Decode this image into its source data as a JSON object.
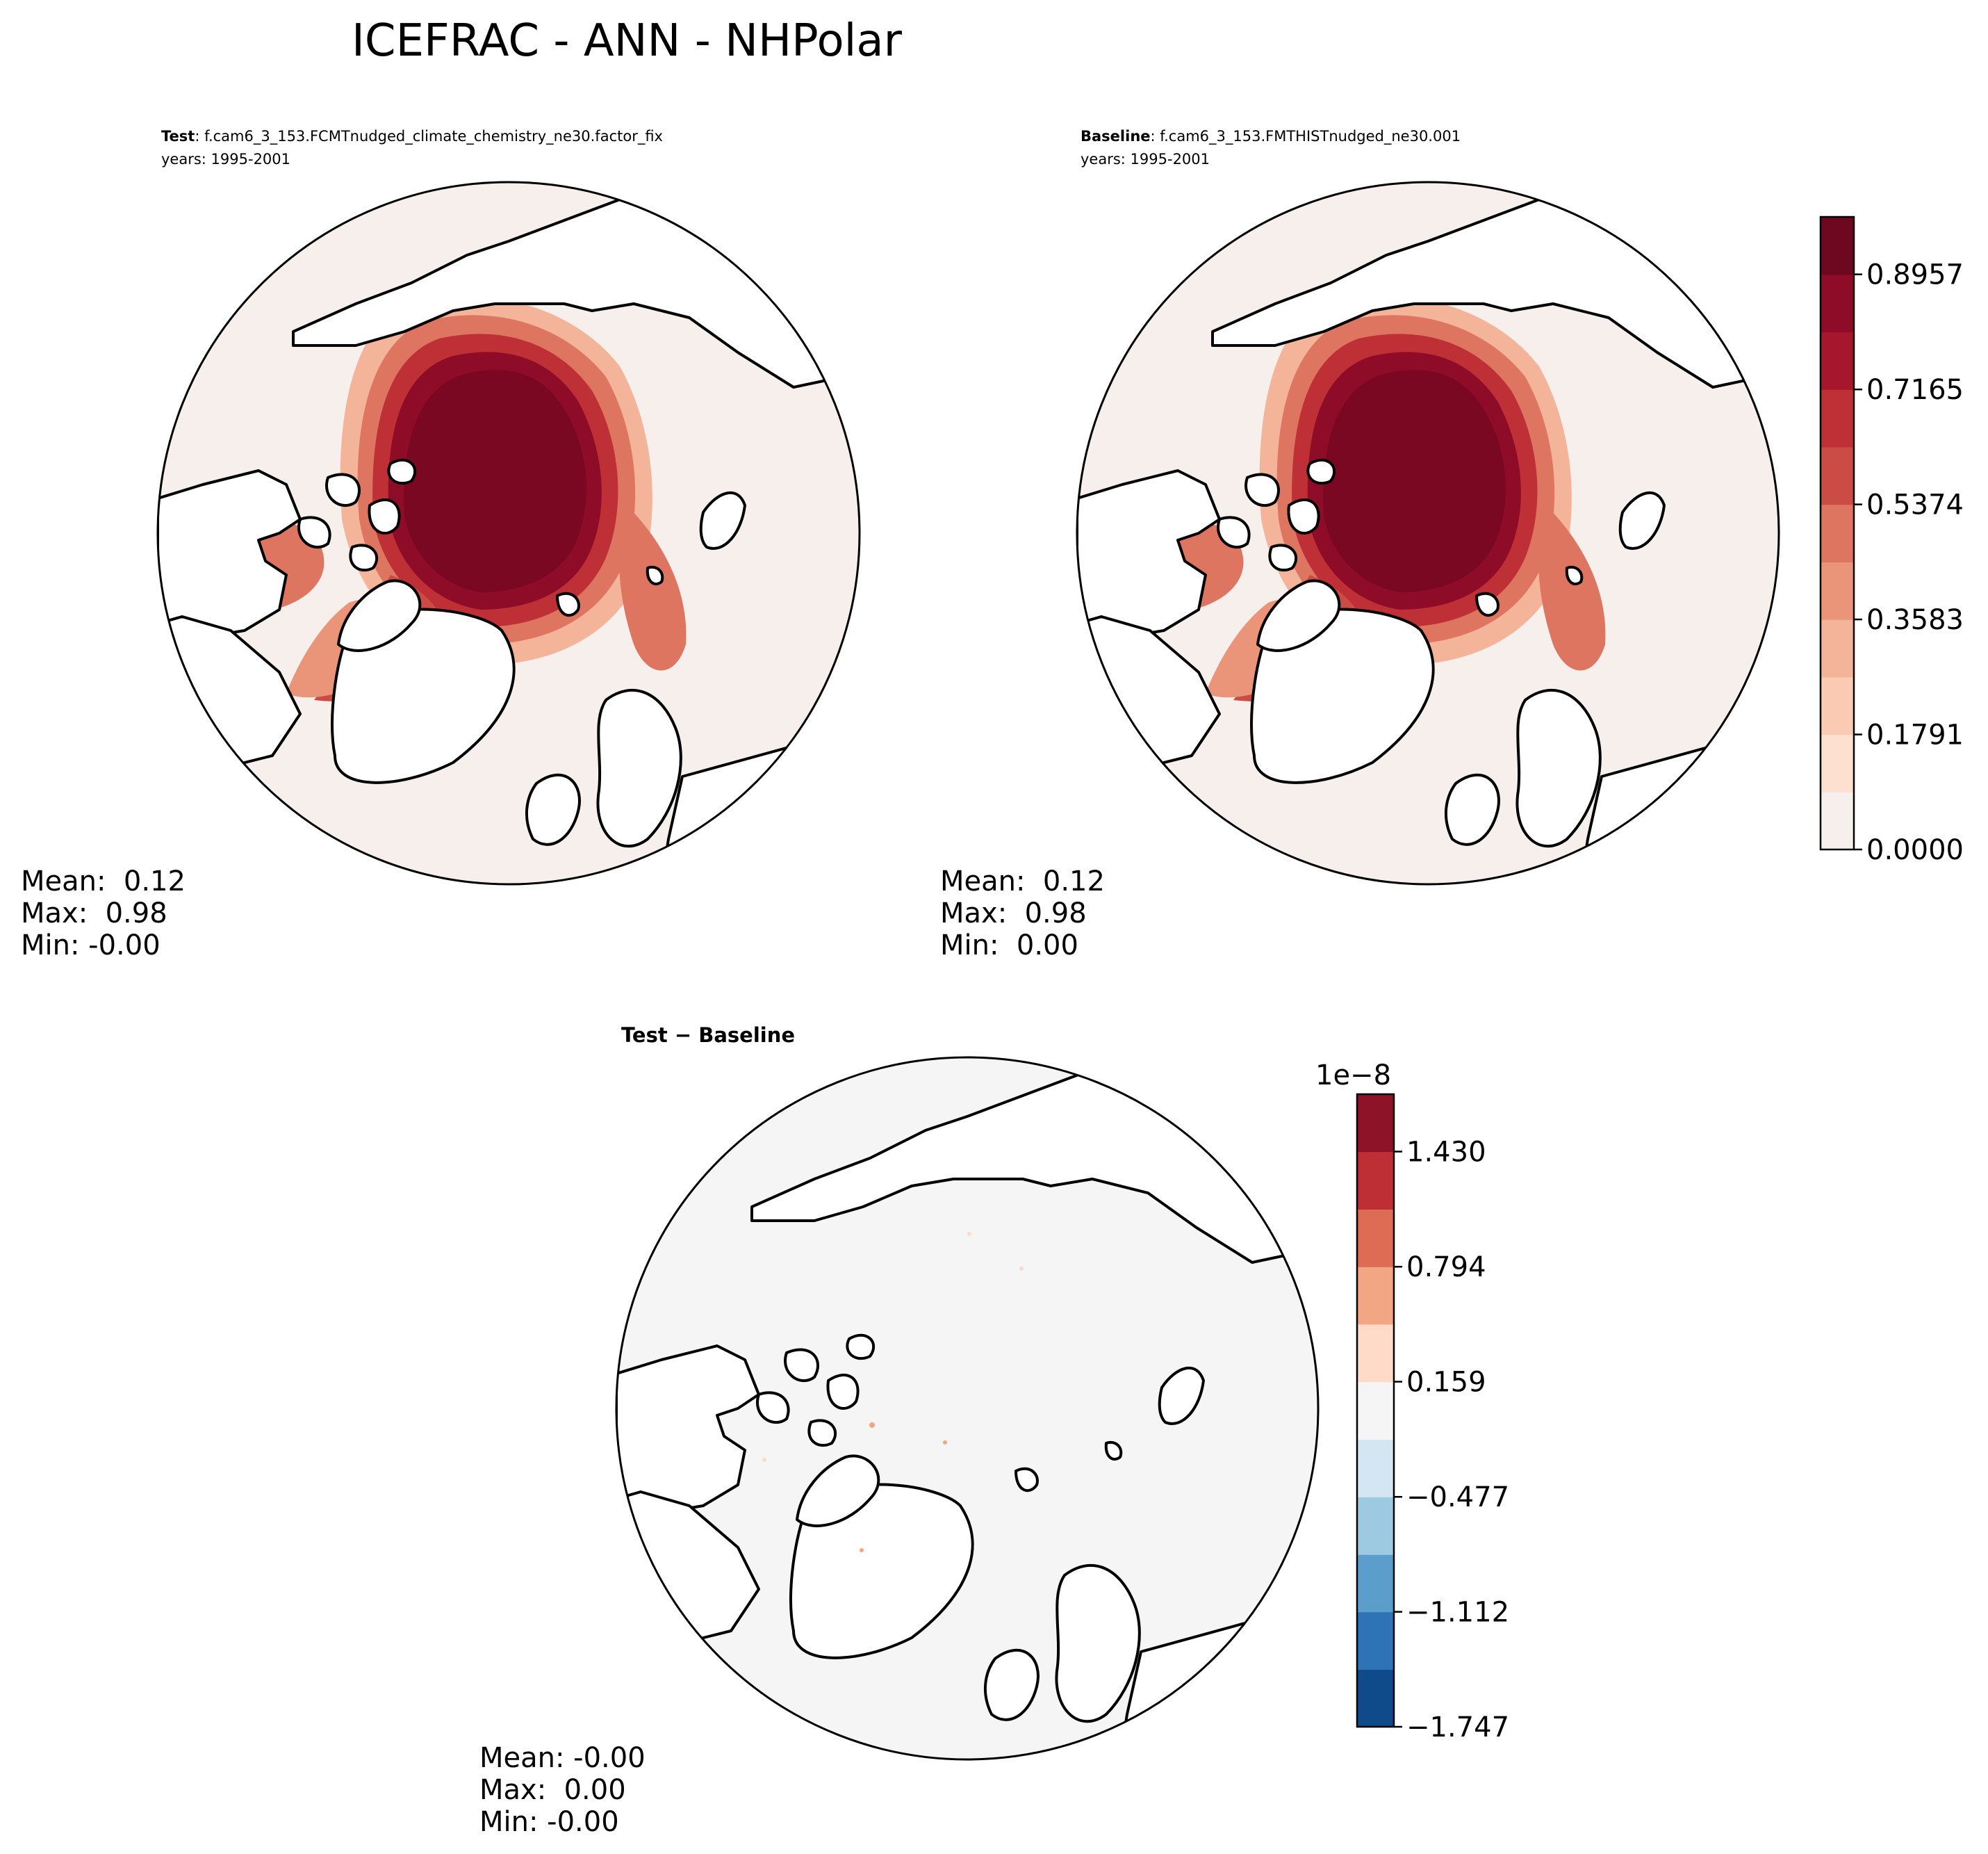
{
  "figure": {
    "title": "ICEFRAC - ANN - NHPolar"
  },
  "colors": {
    "ocean_bg": "#f6efec",
    "diff_bg": "#f5f5f5",
    "land": "#ffffff",
    "coast": "#000000",
    "ice_high": "#7a0822",
    "ice_mid": "#cb4b45",
    "ice_low": "#f4b49a"
  },
  "chart_data": [
    {
      "type": "heatmap",
      "projection": "north-polar-stereographic",
      "title_bold": "Test",
      "title_case": ": f.cam6_3_153.FCMTnudged_climate_chemistry_ne30.factor_fix",
      "subtitle": "years: 1995-2001",
      "stats": {
        "mean": "Mean:  0.12",
        "max": "Max:  0.98",
        "min": "Min: -0.00"
      }
    },
    {
      "type": "heatmap",
      "projection": "north-polar-stereographic",
      "title_bold": "Baseline",
      "title_case": ": f.cam6_3_153.FMTHISTnudged_ne30.001",
      "subtitle": "years: 1995-2001",
      "stats": {
        "mean": "Mean:  0.12",
        "max": "Max:  0.98",
        "min": "Min:  0.00"
      },
      "colorbar": {
        "levels": [
          0.0,
          0.0896,
          0.1791,
          0.2687,
          0.3583,
          0.4478,
          0.5374,
          0.627,
          0.7165,
          0.8061,
          0.8957,
          0.9852
        ],
        "tick_values": [
          0.0,
          0.1791,
          0.3583,
          0.5374,
          0.7165,
          0.8957
        ],
        "tick_labels": [
          "0.0000",
          "0.1791",
          "0.3583",
          "0.5374",
          "0.7165",
          "0.8957"
        ],
        "colors": [
          "#f6efec",
          "#fde0d0",
          "#fbcab2",
          "#f4b49a",
          "#ea9479",
          "#de7560",
          "#cb4b45",
          "#be3036",
          "#a6172e",
          "#8e0c27",
          "#6e0820"
        ]
      }
    },
    {
      "type": "heatmap",
      "projection": "north-polar-stereographic",
      "title_bold": "Test",
      "title_sep": " − ",
      "title_bold2": "Baseline",
      "stats": {
        "mean": "Mean: -0.00",
        "max": "Max:  0.00",
        "min": "Min: -0.00"
      },
      "colorbar": {
        "offset_label": "1e−8",
        "levels": [
          -1.747,
          -1.43,
          -1.112,
          -0.795,
          -0.477,
          -0.159,
          0.159,
          0.477,
          0.794,
          1.112,
          1.43,
          1.747
        ],
        "tick_values": [
          -1.747,
          -1.112,
          -0.477,
          0.159,
          0.794,
          1.43
        ],
        "tick_labels": [
          "−1.747",
          "−1.112",
          "−0.477",
          "0.159",
          "0.794",
          "1.430"
        ],
        "colors": [
          "#0f4a8a",
          "#2e73b5",
          "#5b9dcb",
          "#9dcae1",
          "#d3e6f1",
          "#f5f5f5",
          "#fddbc8",
          "#f3a683",
          "#dc6c54",
          "#bd2f35",
          "#8d1328"
        ]
      }
    }
  ]
}
